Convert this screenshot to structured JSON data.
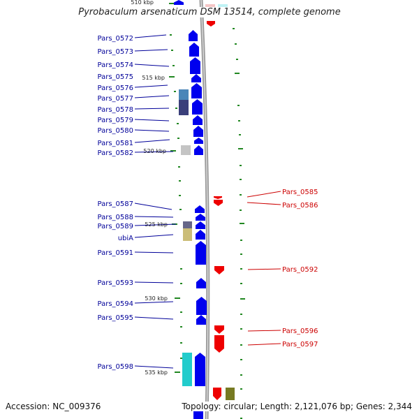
{
  "header": {
    "title": "Pyrobaculum arsenaticum DSM 13514, complete genome"
  },
  "footer": {
    "accession": "Accession: NC_009376",
    "summary": "Topology: circular; Length: 2,121,076 bp; Genes: 2,344"
  },
  "map": {
    "colors": {
      "forward": "#0000ee",
      "reverse": "#ee0000",
      "label_forward": "#000099",
      "label_reverse": "#cc0000",
      "backbone": "#999999",
      "tick": "#228822"
    },
    "scale_labels": [
      "510 kbp",
      "515 kbp",
      "520 kbp",
      "525 kbp",
      "530 kbp",
      "535 kbp"
    ],
    "forward_genes": [
      "Pars_0572",
      "Pars_0573",
      "Pars_0574",
      "Pars_0575",
      "Pars_0576",
      "Pars_0577",
      "Pars_0578",
      "Pars_0579",
      "Pars_0580",
      "Pars_0581",
      "Pars_0582",
      "Pars_0587",
      "Pars_0588",
      "Pars_0589",
      "ubiA",
      "Pars_0591",
      "Pars_0593",
      "Pars_0594",
      "Pars_0595",
      "Pars_0598"
    ],
    "reverse_genes": [
      "Pars_0585",
      "Pars_0586",
      "Pars_0592",
      "Pars_0596",
      "Pars_0597"
    ]
  }
}
